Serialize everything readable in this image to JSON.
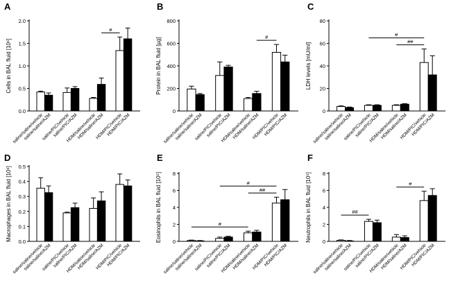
{
  "figure_title": "",
  "styles": {
    "open_bar": "#ffffff",
    "filled_bar": "#000000",
    "stroke": "#000000"
  },
  "categories": [
    "saline/saline/vehicle",
    "saline/saline/AZM",
    "saline/PIC/vehicle",
    "saline/PIC/AZM",
    "HDM/saline/vehicle",
    "HDM/saline/AZM",
    "HDM/PIC/vehicle",
    "HDM/PIC/AZM"
  ],
  "chart_data": [
    {
      "type": "bar",
      "panel": "A",
      "ylabel": "Cells in BAL fluid [10⁶]",
      "ylim": [
        0,
        2.0
      ],
      "yticks": [
        "0.0",
        "0.5",
        "1.0",
        "1.5",
        "2.0"
      ],
      "ytick_values": [
        0,
        0.5,
        1.0,
        1.5,
        2.0
      ],
      "values": [
        0.42,
        0.35,
        0.41,
        0.5,
        0.28,
        0.59,
        1.34,
        1.6
      ],
      "errors": [
        0.02,
        0.05,
        0.1,
        0.04,
        0.02,
        0.14,
        0.3,
        0.24
      ],
      "significance": [
        {
          "from": 5,
          "to": 6,
          "label": "#"
        }
      ]
    },
    {
      "type": "bar",
      "panel": "B",
      "ylabel": "Protein in BAL fluid [µg]",
      "ylim": [
        0,
        800
      ],
      "yticks": [
        "0",
        "200",
        "400",
        "600",
        "800"
      ],
      "ytick_values": [
        0,
        200,
        400,
        600,
        800
      ],
      "values": [
        195,
        145,
        315,
        390,
        110,
        155,
        520,
        435
      ],
      "errors": [
        25,
        10,
        120,
        15,
        10,
        20,
        70,
        60
      ],
      "significance": [
        {
          "from": 5,
          "to": 6,
          "label": "#"
        }
      ]
    },
    {
      "type": "bar",
      "panel": "C",
      "ylabel": "LDH levels [mU/ml]",
      "ylim": [
        0,
        80
      ],
      "yticks": [
        "0",
        "20",
        "40",
        "60",
        "80"
      ],
      "ytick_values": [
        0,
        20,
        40,
        60,
        80
      ],
      "values": [
        4,
        3,
        5,
        5,
        5,
        6,
        43,
        32
      ],
      "errors": [
        0.5,
        0.5,
        0.5,
        0.5,
        0.5,
        0.5,
        12,
        17
      ],
      "significance": [
        {
          "from": 2,
          "to": 6,
          "label": "#"
        },
        {
          "from": 4,
          "to": 6,
          "label": "##"
        }
      ]
    },
    {
      "type": "bar",
      "panel": "D",
      "ylabel": "Macrophages in BAL fluid [10⁶]",
      "ylim": [
        0,
        0.5
      ],
      "yticks": [
        "0.0",
        "0.1",
        "0.2",
        "0.3",
        "0.4",
        "0.5"
      ],
      "ytick_values": [
        0,
        0.1,
        0.2,
        0.3,
        0.4,
        0.5
      ],
      "values": [
        0.355,
        0.325,
        0.19,
        0.225,
        0.22,
        0.27,
        0.38,
        0.37
      ],
      "errors": [
        0.07,
        0.045,
        0.005,
        0.03,
        0.07,
        0.06,
        0.07,
        0.04
      ],
      "significance": []
    },
    {
      "type": "bar",
      "panel": "E",
      "ylabel": "Eosinophils in BAL fluid [10⁵]",
      "ylim": [
        0,
        8
      ],
      "yticks": [
        "0",
        "2",
        "4",
        "6",
        "8"
      ],
      "ytick_values": [
        0,
        2,
        4,
        6,
        8
      ],
      "values": [
        0.1,
        0.05,
        0.35,
        0.5,
        1.0,
        1.1,
        4.5,
        4.9
      ],
      "errors": [
        0.05,
        0.05,
        0.15,
        0.1,
        0.2,
        0.2,
        0.7,
        1.2
      ],
      "significance": [
        {
          "from": 0,
          "to": 4,
          "label": "#"
        },
        {
          "from": 2,
          "to": 6,
          "label": "#"
        },
        {
          "from": 4,
          "to": 6,
          "label": "##"
        }
      ]
    },
    {
      "type": "bar",
      "panel": "F",
      "ylabel": "Neutrophils in BAL fluid [10⁵]",
      "ylim": [
        0,
        8
      ],
      "yticks": [
        "0",
        "2",
        "4",
        "6",
        "8"
      ],
      "ytick_values": [
        0,
        2,
        4,
        6,
        8
      ],
      "values": [
        0.12,
        0.05,
        2.35,
        2.2,
        0.5,
        0.45,
        4.8,
        5.4
      ],
      "errors": [
        0.05,
        0.05,
        0.25,
        0.3,
        0.3,
        0.2,
        1.1,
        0.8
      ],
      "significance": [
        {
          "from": 0,
          "to": 2,
          "label": "##"
        },
        {
          "from": 4,
          "to": 6,
          "label": "#"
        }
      ]
    }
  ]
}
